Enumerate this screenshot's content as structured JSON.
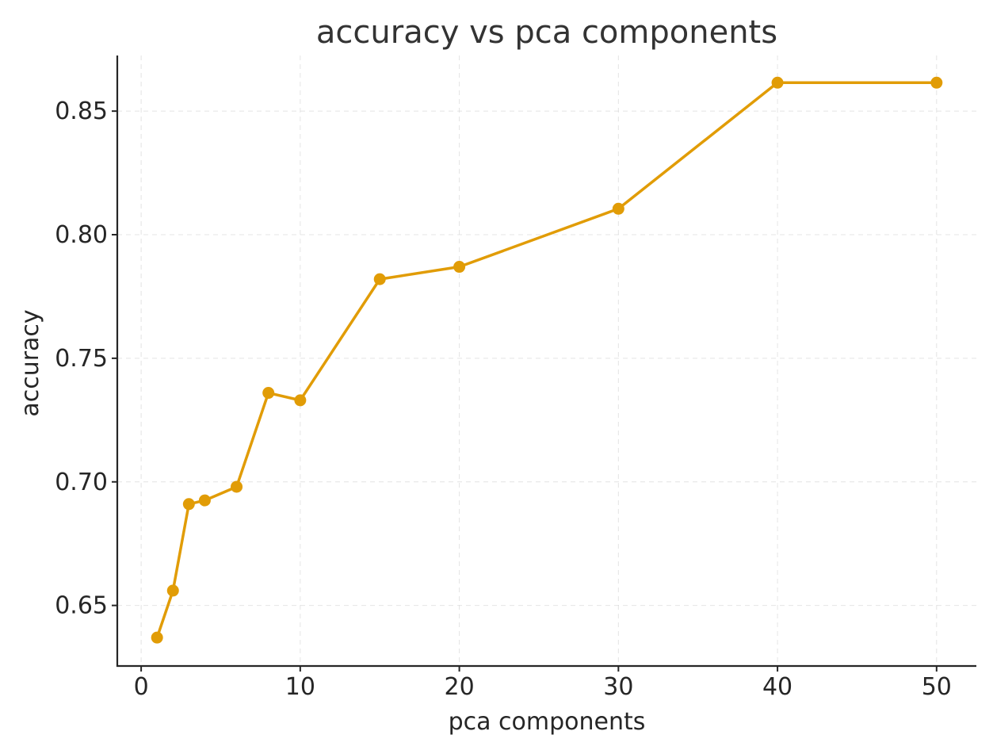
{
  "chart_data": {
    "type": "line",
    "title": "accuracy vs pca components",
    "xlabel": "pca components",
    "ylabel": "accuracy",
    "xlim": [
      -1.5,
      52.5
    ],
    "ylim": [
      0.6255,
      0.8725
    ],
    "xticks": [
      0,
      10,
      20,
      30,
      40,
      50
    ],
    "yticks": [
      0.65,
      0.7,
      0.75,
      0.8,
      0.85
    ],
    "xtick_labels": [
      "0",
      "10",
      "20",
      "30",
      "40",
      "50"
    ],
    "ytick_labels": [
      "0.65",
      "0.70",
      "0.75",
      "0.80",
      "0.85"
    ],
    "grid": true,
    "series": [
      {
        "color": "#E19C06",
        "marker": "circle",
        "x": [
          1,
          2,
          3,
          4,
          6,
          8,
          10,
          15,
          20,
          30,
          40,
          50
        ],
        "y": [
          0.637,
          0.656,
          0.691,
          0.6925,
          0.698,
          0.736,
          0.733,
          0.782,
          0.787,
          0.8105,
          0.8615,
          0.8615
        ]
      }
    ]
  }
}
